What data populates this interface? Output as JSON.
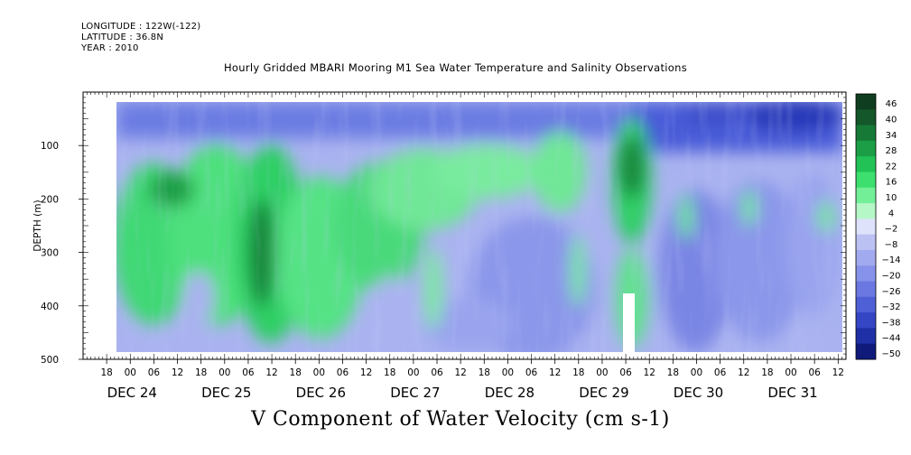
{
  "meta": {
    "longitude": "LONGITUDE : 122W(-122)",
    "latitude": "LATITUDE : 36.8N",
    "year": "YEAR : 2010"
  },
  "chart_data": {
    "type": "heatmap",
    "title": "Hourly Gridded MBARI Mooring M1 Sea Water Temperature and Salinity Observations",
    "caption": "V Component of Water Velocity (cm s-1)",
    "ylabel": "DEPTH (m)",
    "ylim": [
      500,
      0
    ],
    "y_ticks": [
      100,
      200,
      300,
      400,
      500
    ],
    "x_start": "2010-12-23T12:00",
    "x_end": "2010-12-31T14:00",
    "x_hour_ticks": [
      "18",
      "00",
      "06",
      "12",
      "18",
      "00",
      "06",
      "12",
      "18",
      "00",
      "06",
      "12",
      "18",
      "00",
      "06",
      "12",
      "18",
      "00",
      "06",
      "12",
      "18",
      "00",
      "06",
      "12",
      "18",
      "00",
      "06",
      "12",
      "18",
      "00",
      "06",
      "12"
    ],
    "date_labels": [
      "DEC 24",
      "DEC 25",
      "DEC 26",
      "DEC 27",
      "DEC 28",
      "DEC 29",
      "DEC 30",
      "DEC 31"
    ],
    "colorbar": {
      "levels": [
        46,
        40,
        34,
        28,
        22,
        16,
        10,
        4,
        -2,
        -8,
        -14,
        -20,
        -26,
        -32,
        -38,
        -44,
        -50
      ],
      "colors": [
        "#0f3d1f",
        "#13572a",
        "#167a36",
        "#1b9e45",
        "#23c257",
        "#3ddf6e",
        "#72ef97",
        "#b5f7c6",
        "#dfe2fb",
        "#bcc1f4",
        "#a2aaef",
        "#8793ea",
        "#6b78e1",
        "#4f5fd6",
        "#3446c4",
        "#1f2fa5",
        "#0f1a7a"
      ]
    },
    "velocity_field": [
      {
        "depth_zone": "surface 20-100 m",
        "days": "DEC 24 - DEC 31",
        "v": -28
      },
      {
        "depth_zone": "200-400 m",
        "days": "DEC 24 - DEC 27",
        "v": 16
      },
      {
        "depth_zone": "100-250 m",
        "days": "DEC 28 - DEC 29",
        "v": 22
      },
      {
        "depth_zone": "200-480 m",
        "days": "DEC 28",
        "v": -12
      },
      {
        "depth_zone": "150-450 m",
        "days": "DEC 30 - DEC 31",
        "v": -14
      }
    ]
  }
}
